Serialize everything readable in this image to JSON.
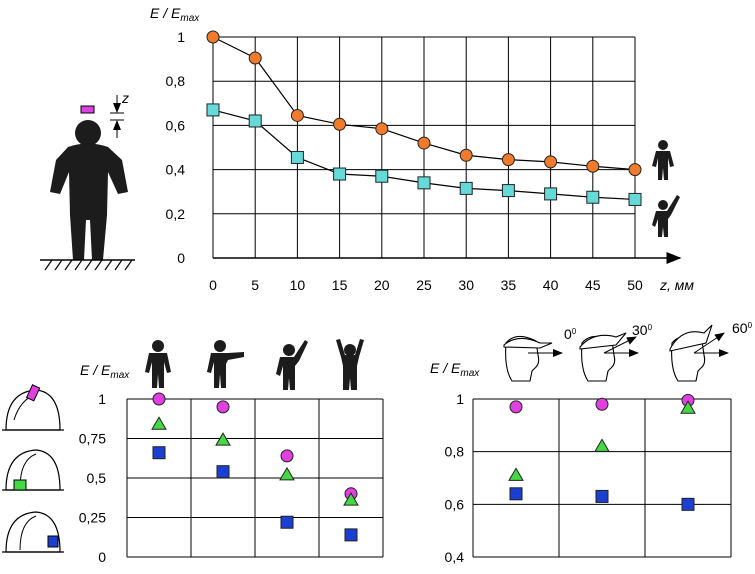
{
  "colors": {
    "orange": "#f07b2c",
    "cyan": "#66d9d9",
    "magenta": "#e040e0",
    "green": "#44d844",
    "blue": "#1a3fd1"
  },
  "chart_data": [
    {
      "type": "line",
      "title": "",
      "ylabel_main": "E / E",
      "ylabel_sub": "max",
      "xlabel": "z, мм",
      "x": [
        0,
        5,
        10,
        15,
        20,
        25,
        30,
        35,
        40,
        45,
        50
      ],
      "x_tick_labels": [
        "0",
        "5",
        "10",
        "15",
        "20",
        "25",
        "30",
        "35",
        "40",
        "45",
        "50"
      ],
      "y_tick_labels": [
        "0",
        "0,2",
        "0,4",
        "0,6",
        "0,8",
        "1"
      ],
      "ylim": [
        0,
        1
      ],
      "xlim": [
        0,
        50
      ],
      "grid": true,
      "series": [
        {
          "marker": "circle",
          "color": "orange",
          "icon": "standing-person-icon",
          "values": [
            1.0,
            0.905,
            0.645,
            0.605,
            0.585,
            0.52,
            0.465,
            0.445,
            0.435,
            0.415,
            0.4
          ]
        },
        {
          "marker": "square",
          "color": "cyan",
          "icon": "raised-arm-person-icon",
          "values": [
            0.67,
            0.62,
            0.455,
            0.38,
            0.37,
            0.34,
            0.315,
            0.305,
            0.29,
            0.275,
            0.265
          ]
        }
      ],
      "annotation": "z"
    },
    {
      "type": "scatter",
      "ylabel_main": "E / E",
      "ylabel_sub": "max",
      "categories": [
        "standing",
        "arm-forward",
        "arm-raised",
        "both-arms-raised"
      ],
      "y_tick_labels": [
        "0",
        "0,25",
        "0,5",
        "0,75",
        "1"
      ],
      "ylim": [
        0,
        1
      ],
      "grid": true,
      "series": [
        {
          "marker": "circle",
          "color": "magenta",
          "values": [
            1.0,
            0.95,
            0.64,
            0.4
          ]
        },
        {
          "marker": "triangle",
          "color": "green",
          "values": [
            0.84,
            0.74,
            0.52,
            0.36
          ]
        },
        {
          "marker": "square",
          "color": "blue",
          "values": [
            0.66,
            0.54,
            0.22,
            0.14
          ]
        }
      ]
    },
    {
      "type": "scatter",
      "ylabel_main": "E / E",
      "ylabel_sub": "max",
      "categories": [
        "0",
        "30",
        "60"
      ],
      "angle_labels": [
        "0",
        "30",
        "60"
      ],
      "angle_unit": "0",
      "y_tick_labels": [
        "0,4",
        "0,6",
        "0,8",
        "1"
      ],
      "ylim": [
        0.4,
        1
      ],
      "grid": true,
      "series": [
        {
          "marker": "circle",
          "color": "magenta",
          "values": [
            0.97,
            0.98,
            0.995
          ]
        },
        {
          "marker": "triangle",
          "color": "green",
          "values": [
            0.71,
            0.82,
            0.965
          ]
        },
        {
          "marker": "square",
          "color": "blue",
          "values": [
            0.64,
            0.63,
            0.6
          ]
        }
      ]
    }
  ]
}
